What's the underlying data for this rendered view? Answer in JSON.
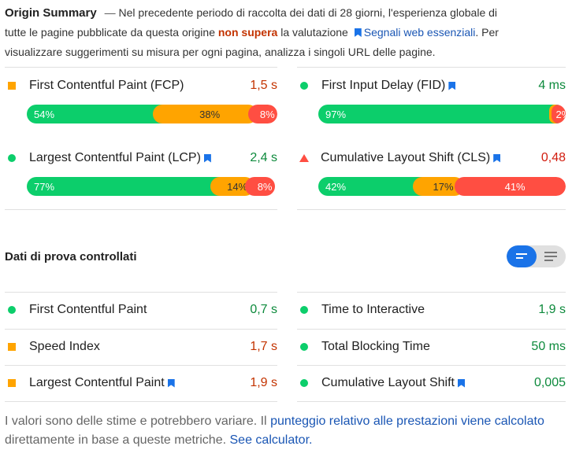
{
  "summary": {
    "title": "Origin Summary",
    "separator": "—",
    "text1": "Nel precedente periodo di raccolta dei dati di 28 giorni, l'esperienza globale di tutte le pagine pubblicate da questa origine",
    "status": "non supera",
    "text2": "la valutazione",
    "link": "Segnali web essenziali",
    "text3": ". Per visualizzare suggerimenti su misura per ogni pagina, analizza i singoli URL delle pagine."
  },
  "field_metrics": [
    {
      "label": "First Contentful Paint (FCP)",
      "value": "1,5 s",
      "rating": "average",
      "icon": "square-icon",
      "bookmark": false,
      "dist": {
        "fast": "54%",
        "average": "38%",
        "slow": "8%"
      },
      "fractions": [
        54,
        38,
        8
      ]
    },
    {
      "label": "First Input Delay (FID)",
      "value": "4 ms",
      "rating": "good",
      "icon": "circle-icon",
      "bookmark": true,
      "dist": {
        "fast": "97%",
        "average": "1%",
        "slow": "2%"
      },
      "fractions": [
        97,
        1,
        2
      ]
    },
    {
      "label": "Largest Contentful Paint (LCP)",
      "value": "2,4 s",
      "rating": "good",
      "icon": "circle-icon",
      "bookmark": true,
      "dist": {
        "fast": "77%",
        "average": "14%",
        "slow": "8%"
      },
      "fractions": [
        77,
        14,
        8
      ]
    },
    {
      "label": "Cumulative Layout Shift (CLS)",
      "value": "0,48",
      "rating": "poor",
      "icon": "triangle-icon",
      "bookmark": true,
      "dist": {
        "fast": "42%",
        "average": "17%",
        "slow": "41%"
      },
      "fractions": [
        42,
        17,
        41
      ]
    }
  ],
  "lab": {
    "title": "Dati di prova controllati",
    "metrics": [
      {
        "label": "First Contentful Paint",
        "value": "0,7 s",
        "rating": "good"
      },
      {
        "label": "Time to Interactive",
        "value": "1,9 s",
        "rating": "good"
      },
      {
        "label": "Speed Index",
        "value": "1,7 s",
        "rating": "average"
      },
      {
        "label": "Total Blocking Time",
        "value": "50 ms",
        "rating": "good"
      },
      {
        "label": "Largest Contentful Paint",
        "value": "1,9 s",
        "rating": "average",
        "bookmark": true
      },
      {
        "label": "Cumulative Layout Shift",
        "value": "0,005",
        "rating": "good",
        "bookmark": true
      }
    ]
  },
  "note": {
    "text1": "I valori sono delle stime e potrebbero variare. Il",
    "link1": "punteggio relativo alle prestazioni viene calcolato",
    "text2": "direttamente in base a queste metriche.",
    "link2": "See calculator."
  },
  "colors": {
    "fast": "#0cce6b",
    "average": "#ffa400",
    "slow": "#ff4e42",
    "link": "#1a56b4",
    "toggle_active": "#1a73e8"
  }
}
